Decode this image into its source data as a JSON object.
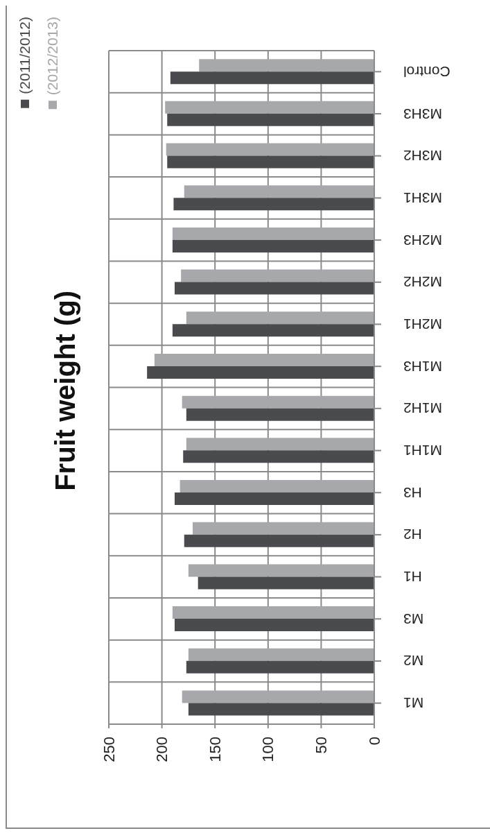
{
  "chart_data": {
    "type": "bar",
    "orientation": "horizontal",
    "ylabel": "Fruit weight (g)",
    "categories": [
      "Control",
      "M3H3",
      "M3H2",
      "M3H1",
      "M2H3",
      "M2H2",
      "M2H1",
      "M1H3",
      "M1H2",
      "M1H1",
      "H3",
      "H2",
      "H1",
      "M3",
      "M2",
      "M1"
    ],
    "series": [
      {
        "name": "(2011/2012)",
        "color": "#4a4b4f",
        "values": [
          192,
          195,
          195,
          189,
          190,
          188,
          190,
          214,
          177,
          180,
          188,
          179,
          166,
          188,
          177,
          175
        ]
      },
      {
        "name": "(2012/2013)",
        "color": "#a6a8ab",
        "values": [
          165,
          197,
          196,
          179,
          190,
          182,
          177,
          207,
          181,
          177,
          183,
          171,
          175,
          190,
          175,
          181
        ]
      }
    ],
    "xlim": [
      250,
      0
    ],
    "xticks": [
      0,
      50,
      100,
      150,
      200,
      250
    ],
    "grid": true,
    "legend": "top left"
  }
}
